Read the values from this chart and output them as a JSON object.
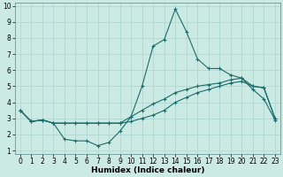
{
  "xlabel": "Humidex (Indice chaleur)",
  "ylabel": "",
  "bg_color": "#cceae4",
  "grid_color": "#aad4cc",
  "line_color": "#1a6b6b",
  "xlim": [
    -0.5,
    23.5
  ],
  "ylim": [
    0.8,
    10.2
  ],
  "xticks": [
    0,
    1,
    2,
    3,
    4,
    5,
    6,
    7,
    8,
    9,
    10,
    11,
    12,
    13,
    14,
    15,
    16,
    17,
    18,
    19,
    20,
    21,
    22,
    23
  ],
  "yticks": [
    1,
    2,
    3,
    4,
    5,
    6,
    7,
    8,
    9,
    10
  ],
  "line1_x": [
    0,
    1,
    2,
    3,
    4,
    5,
    6,
    7,
    8,
    9,
    10,
    11,
    12,
    13,
    14,
    15,
    16,
    17,
    18,
    19,
    20,
    21,
    22,
    23
  ],
  "line1_y": [
    3.5,
    2.8,
    2.9,
    2.7,
    1.7,
    1.6,
    1.6,
    1.3,
    1.5,
    2.2,
    3.1,
    5.0,
    7.5,
    7.9,
    9.8,
    8.4,
    6.7,
    6.1,
    6.1,
    5.7,
    5.5,
    4.8,
    4.2,
    2.9
  ],
  "line2_x": [
    0,
    1,
    2,
    3,
    4,
    5,
    6,
    7,
    8,
    9,
    10,
    11,
    12,
    13,
    14,
    15,
    16,
    17,
    18,
    19,
    20,
    21,
    22,
    23
  ],
  "line2_y": [
    3.5,
    2.8,
    2.9,
    2.7,
    2.7,
    2.7,
    2.7,
    2.7,
    2.7,
    2.7,
    2.8,
    3.0,
    3.2,
    3.5,
    4.0,
    4.3,
    4.6,
    4.8,
    5.0,
    5.2,
    5.3,
    5.0,
    4.9,
    3.0
  ],
  "line3_x": [
    0,
    1,
    2,
    3,
    4,
    5,
    6,
    7,
    8,
    9,
    10,
    11,
    12,
    13,
    14,
    15,
    16,
    17,
    18,
    19,
    20,
    21,
    22,
    23
  ],
  "line3_y": [
    3.5,
    2.8,
    2.9,
    2.7,
    2.7,
    2.7,
    2.7,
    2.7,
    2.7,
    2.7,
    3.1,
    3.5,
    3.9,
    4.2,
    4.6,
    4.8,
    5.0,
    5.1,
    5.2,
    5.4,
    5.5,
    5.0,
    4.9,
    3.0
  ],
  "tick_fontsize": 5.5,
  "xlabel_fontsize": 6.5,
  "linewidth": 0.8,
  "markersize": 3.5
}
